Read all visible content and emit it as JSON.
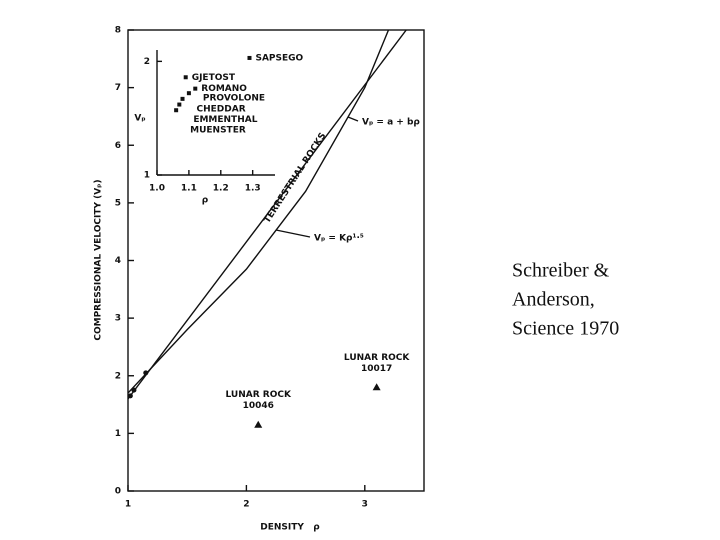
{
  "chart_data": [
    {
      "type": "line",
      "xlabel": "DENSITY   ρ",
      "ylabel": "COMPRESSIONAL VELOCITY (Vₚ)",
      "xlim": [
        1,
        3.5
      ],
      "ylim": [
        0,
        8
      ],
      "xticks": [
        1,
        2,
        3
      ],
      "yticks": [
        0,
        1,
        2,
        3,
        4,
        5,
        6,
        7,
        8
      ],
      "series": [
        {
          "name": "Vₚ = a + bρ",
          "color": "#111111",
          "x": [
            1,
            3.35
          ],
          "values": [
            1.6,
            8
          ]
        },
        {
          "name": "Vₚ = Kρ¹·⁵",
          "color": "#111111",
          "x": [
            1,
            1.5,
            2,
            2.5,
            3,
            3.2
          ],
          "values": [
            1.7,
            2.8,
            3.85,
            5.2,
            7,
            8
          ]
        }
      ],
      "annotation": "TERRESTRIAL ROCKS",
      "points": [
        {
          "x": 1.02,
          "y": 1.65
        },
        {
          "x": 1.05,
          "y": 1.75
        },
        {
          "x": 1.15,
          "y": 2.05
        },
        {
          "x": 2.1,
          "y": 1.15,
          "label": [
            "LUNAR ROCK",
            "10046"
          ]
        },
        {
          "x": 3.1,
          "y": 1.8,
          "label": [
            "LUNAR ROCK",
            "10017"
          ]
        }
      ]
    },
    {
      "type": "scatter",
      "xlabel": "ρ",
      "ylabel": "Vₚ",
      "xlim": [
        1,
        1.37
      ],
      "ylim": [
        1,
        2.1
      ],
      "xticks": [
        {
          "value": 1,
          "label": "1.0"
        },
        1.1,
        1.2,
        1.3
      ],
      "yticks": [
        1,
        2
      ],
      "points": [
        {
          "x": 1.29,
          "y": 2.03,
          "label": "SAPSEGO"
        },
        {
          "x": 1.09,
          "y": 1.86,
          "label": "GJETOST"
        },
        {
          "x": 1.12,
          "y": 1.76,
          "label": "ROMANO"
        },
        {
          "x": 1.1,
          "y": 1.72,
          "label": "PROVOLONE"
        },
        {
          "x": 1.08,
          "y": 1.67,
          "label": "CHEDDAR"
        },
        {
          "x": 1.07,
          "y": 1.62,
          "label": "EMMENTHAL"
        },
        {
          "x": 1.06,
          "y": 1.57,
          "label": "MUENSTER"
        }
      ]
    }
  ],
  "caption": [
    "Schreiber &",
    "Anderson,",
    "Science 1970"
  ]
}
